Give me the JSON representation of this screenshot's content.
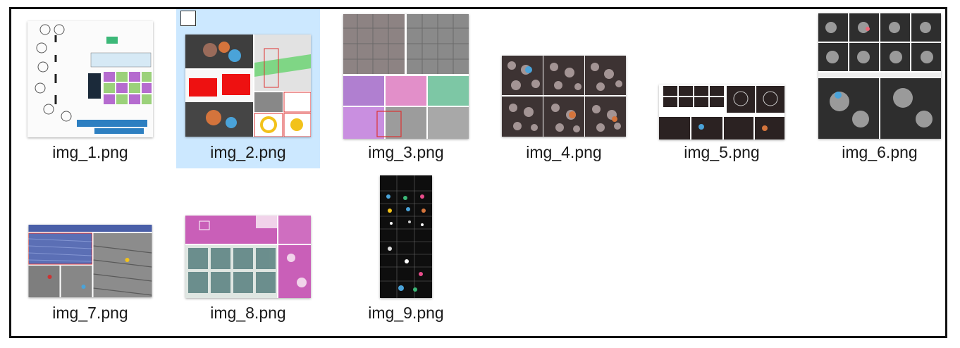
{
  "window": {
    "title": ""
  },
  "files": [
    {
      "name": "img_1.png",
      "selected": false,
      "icon": "flowchart-figure-thumbnail"
    },
    {
      "name": "img_2.png",
      "selected": true,
      "icon": "microscopy-scatter-figure-thumbnail"
    },
    {
      "name": "img_3.png",
      "selected": false,
      "icon": "segmentation-grid-thumbnail"
    },
    {
      "name": "img_4.png",
      "selected": false,
      "icon": "cell-grid-thumbnail"
    },
    {
      "name": "img_5.png",
      "selected": false,
      "icon": "wide-panel-figure-thumbnail"
    },
    {
      "name": "img_6.png",
      "selected": false,
      "icon": "fluorescence-panel-thumbnail"
    },
    {
      "name": "img_7.png",
      "selected": false,
      "icon": "tissue-section-thumbnail"
    },
    {
      "name": "img_8.png",
      "selected": false,
      "icon": "histology-stain-thumbnail"
    },
    {
      "name": "img_9.png",
      "selected": false,
      "icon": "tall-fluorescence-strip-thumbnail"
    }
  ],
  "colors": {
    "selection": "#cce8ff",
    "border": "#111111",
    "label": "#1a1a1a"
  }
}
